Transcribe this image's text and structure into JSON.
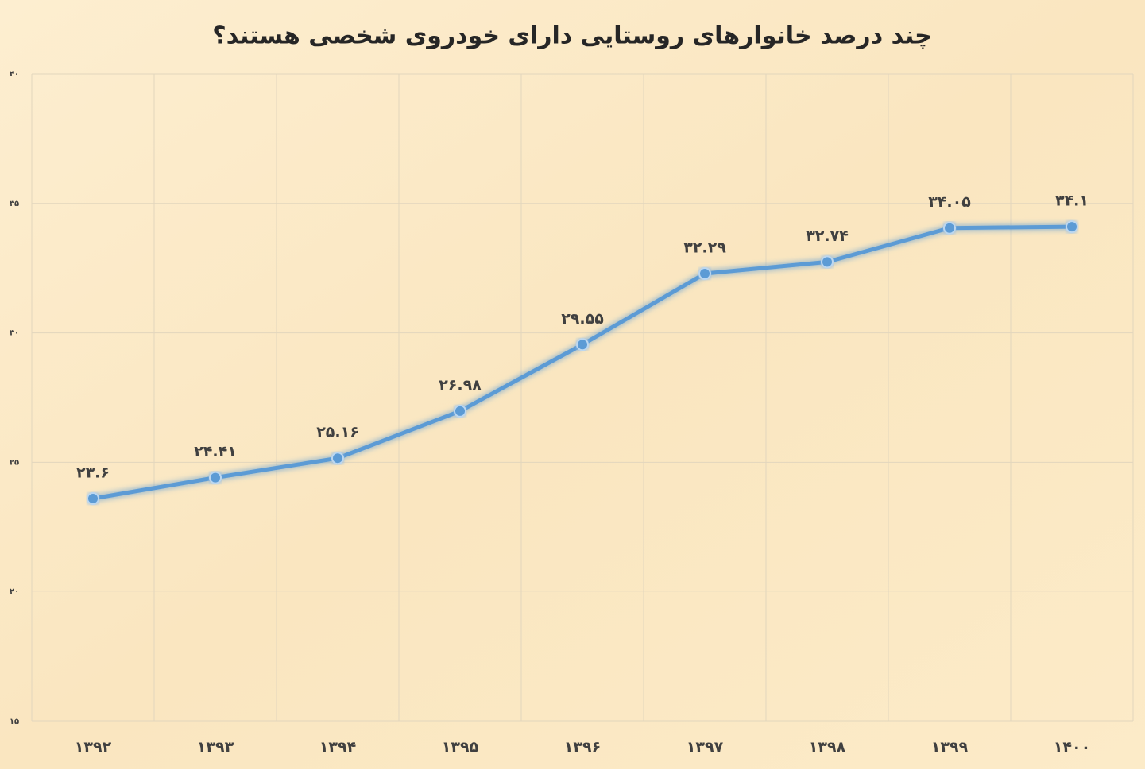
{
  "chart_data": {
    "type": "line",
    "title": "چند درصد خانوارهای روستایی دارای خودروی شخصی هستند؟",
    "categories": [
      "۱۳۹۲",
      "۱۳۹۳",
      "۱۳۹۴",
      "۱۳۹۵",
      "۱۳۹۶",
      "۱۳۹۷",
      "۱۳۹۸",
      "۱۳۹۹",
      "۱۴۰۰"
    ],
    "values": [
      23.6,
      24.41,
      25.16,
      26.98,
      29.55,
      32.29,
      32.74,
      34.05,
      34.1
    ],
    "value_labels": [
      "۲۳.۶",
      "۲۴.۴۱",
      "۲۵.۱۶",
      "۲۶.۹۸",
      "۲۹.۵۵",
      "۳۲.۲۹",
      "۳۲.۷۴",
      "۳۴.۰۵",
      "۳۴.۱"
    ],
    "color": "#5b9bd5",
    "ylim": [
      15,
      40
    ],
    "yticks": [
      {
        "value": 15,
        "label": "۱۵"
      },
      {
        "value": 20,
        "label": "۲۰"
      },
      {
        "value": 25,
        "label": "۲۵"
      },
      {
        "value": 30,
        "label": "۳۰"
      },
      {
        "value": 35,
        "label": "۳۵"
      },
      {
        "value": 40,
        "label": "۴۰"
      }
    ],
    "grid": true
  }
}
